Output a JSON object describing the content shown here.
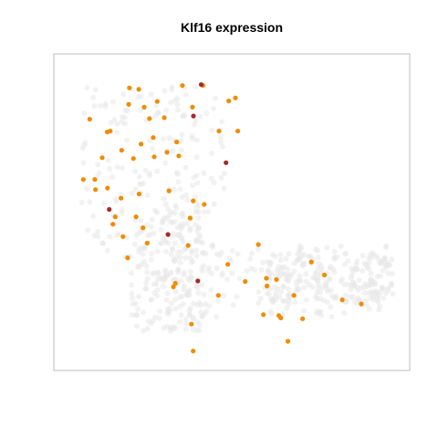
{
  "chart_data": {
    "type": "scatter",
    "title": "Klf16 expression",
    "xlabel": "",
    "ylabel": "",
    "xlim": [
      0,
      100
    ],
    "ylim": [
      0,
      100
    ],
    "grid": false,
    "axes_visible": false,
    "colors": {
      "background": "#e8e8e8",
      "low": "#f08c00",
      "high": "#a52a2a"
    },
    "background_regions": [
      {
        "x": [
          5,
          48
        ],
        "y": [
          35,
          93
        ]
      },
      {
        "x": [
          20,
          42
        ],
        "y": [
          10,
          52
        ]
      },
      {
        "x": [
          30,
          98
        ],
        "y": [
          15,
          40
        ]
      },
      {
        "x": [
          60,
          98
        ],
        "y": [
          20,
          37
        ]
      }
    ],
    "series": [
      {
        "label_key": "low",
        "points": [
          [
            19.5,
            92.5
          ],
          [
            22.3,
            92.0
          ],
          [
            35.3,
            93.3
          ],
          [
            41.4,
            93.3
          ],
          [
            27.8,
            87.9
          ],
          [
            19.3,
            86.9
          ],
          [
            23.9,
            86.0
          ],
          [
            38.3,
            86.0
          ],
          [
            49.1,
            88.1
          ],
          [
            51.1,
            89.1
          ],
          [
            7.7,
            81.9
          ],
          [
            25.5,
            82.1
          ],
          [
            29.9,
            82.4
          ],
          [
            13.8,
            77.9
          ],
          [
            12.9,
            77.6
          ],
          [
            46.2,
            77.9
          ],
          [
            51.8,
            77.9
          ],
          [
            26.6,
            75.7
          ],
          [
            33.6,
            74.2
          ],
          [
            23.0,
            73.5
          ],
          [
            17.2,
            71.4
          ],
          [
            30.7,
            70.7
          ],
          [
            26.9,
            69.2
          ],
          [
            11.4,
            68.9
          ],
          [
            20.7,
            68.6
          ],
          [
            34.2,
            69.5
          ],
          [
            5.8,
            61.5
          ],
          [
            9.2,
            61.5
          ],
          [
            13.0,
            58.6
          ],
          [
            9.4,
            58.1
          ],
          [
            31.3,
            57.7
          ],
          [
            22.4,
            56.6
          ],
          [
            17.0,
            55.2
          ],
          [
            38.5,
            54.3
          ],
          [
            41.8,
            53.1
          ],
          [
            15.3,
            48.9
          ],
          [
            21.5,
            48.9
          ],
          [
            37.6,
            48.5
          ],
          [
            14.6,
            46.4
          ],
          [
            23.6,
            45.2
          ],
          [
            17.6,
            42.2
          ],
          [
            24.8,
            40.0
          ],
          [
            37.0,
            39.2
          ],
          [
            57.9,
            39.5
          ],
          [
            19.0,
            35.0
          ],
          [
            48.8,
            32.8
          ],
          [
            73.7,
            33.6
          ],
          [
            77.6,
            29.2
          ],
          [
            60.3,
            28.1
          ],
          [
            63.3,
            27.7
          ],
          [
            54.0,
            27.0
          ],
          [
            33.2,
            26.4
          ],
          [
            32.6,
            25.2
          ],
          [
            60.5,
            25.5
          ],
          [
            46.0,
            22.3
          ],
          [
            68.5,
            22.3
          ],
          [
            82.9,
            20.8
          ],
          [
            88.6,
            19.4
          ],
          [
            59.4,
            15.8
          ],
          [
            64.0,
            15.5
          ],
          [
            64.6,
            14.7
          ],
          [
            71.1,
            14.4
          ],
          [
            38.0,
            12.6
          ],
          [
            66.7,
            6.8
          ],
          [
            38.5,
            3.5
          ]
        ]
      },
      {
        "label_key": "high",
        "points": [
          [
            40.9,
            93.6
          ],
          [
            38.6,
            83.0
          ],
          [
            48.3,
            67.2
          ],
          [
            13.5,
            51.4
          ],
          [
            31.0,
            42.9
          ],
          [
            39.9,
            27.2
          ]
        ]
      }
    ]
  }
}
